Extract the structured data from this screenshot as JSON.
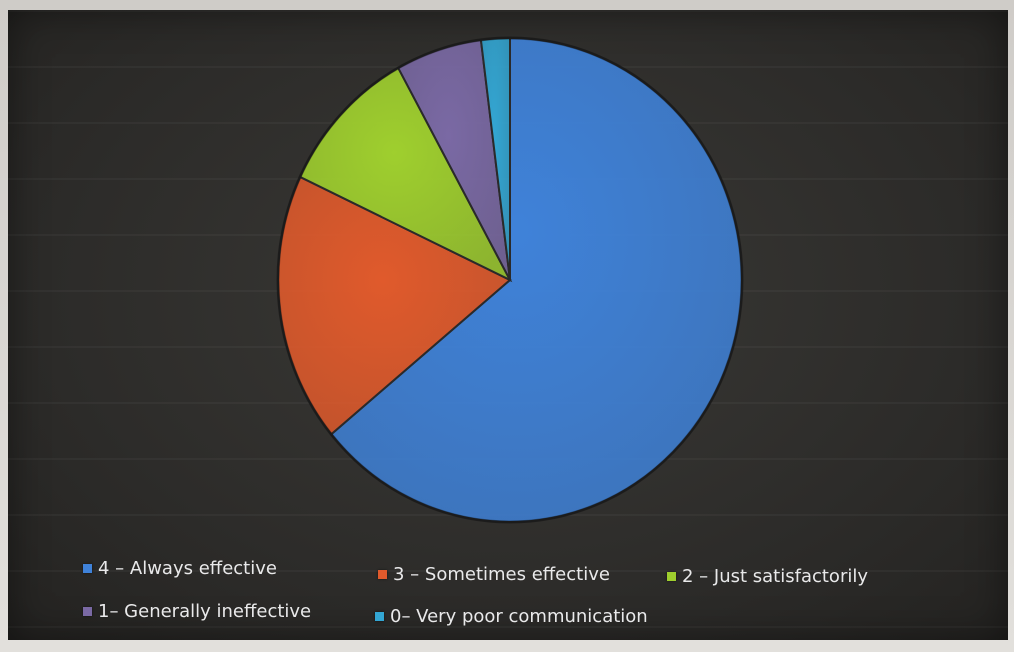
{
  "chart_data": {
    "type": "pie",
    "title": "",
    "slices": [
      {
        "label": "4 – Always effective",
        "value": 64,
        "color": "#3f82d9"
      },
      {
        "label": "3 – Sometimes effective",
        "value": 18,
        "color": "#e05a2c"
      },
      {
        "label": "2 – Just satisfactorily",
        "value": 10,
        "color": "#9fcf2e"
      },
      {
        "label": "1– Generally ineffective",
        "value": 6,
        "color": "#7a69a4"
      },
      {
        "label": "0– Very poor communication",
        "value": 2,
        "color": "#33a6d3"
      }
    ],
    "legend_position": "bottom"
  }
}
